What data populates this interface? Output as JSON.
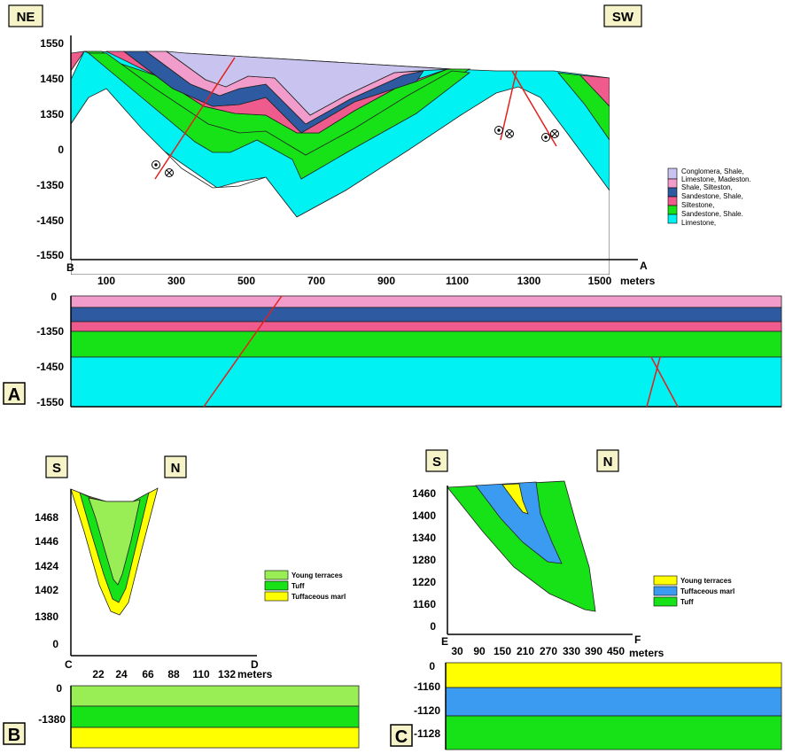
{
  "colors": {
    "conglomerate": "#c8c4ef",
    "shale": "#f29ccb",
    "sandstone_shale_blue": "#2e5aa1",
    "siltstone": "#ee5b8c",
    "sandstone_green": "#17e117",
    "limestone": "#00f2f2",
    "young_terraces": "#99ee55",
    "tuff": "#17e117",
    "tuffaceous_marl": "#ffff00",
    "tuffaceous_marl_c": "#3a9bf0",
    "label_box": "#f7f3c8",
    "fault": "#e3211c"
  },
  "panel_a": {
    "label": "A",
    "orient_left": "NE",
    "orient_right": "SW",
    "y_ticks": [
      "1550",
      "1450",
      "1350",
      "0",
      "-1350",
      "-1450",
      "-1550"
    ],
    "x_ticks": [
      "100",
      "300",
      "500",
      "700",
      "900",
      "1100",
      "1300",
      "1500"
    ],
    "x_unit": "meters",
    "x_start_label": "B",
    "x_end_label": "A",
    "legend": [
      "Conglomera, Shale,",
      "Limestone, Madeston.",
      "Shale, Silteston,",
      "Sandestone, Shale,",
      "Siltestone,",
      "Sandestone, Shale.",
      "Limestone,"
    ],
    "strip_ticks": [
      "0",
      "-1350",
      "-1450",
      "-1550"
    ]
  },
  "panel_b": {
    "label": "B",
    "orient_left": "S",
    "orient_right": "N",
    "y_ticks": [
      "1468",
      "1446",
      "1424",
      "1402",
      "1380",
      "0"
    ],
    "x_ticks": [
      "22",
      "24",
      "66",
      "88",
      "110",
      "132"
    ],
    "x_unit": "meters",
    "x_start_label": "C",
    "x_end_label": "D",
    "legend": [
      "Young terraces",
      "Tuff",
      "Tuffaceous marl"
    ],
    "strip_ticks": [
      "0",
      "-1380"
    ]
  },
  "panel_c": {
    "label": "C",
    "orient_left": "S",
    "orient_right": "N",
    "y_ticks": [
      "1460",
      "1400",
      "1340",
      "1280",
      "1220",
      "1160",
      "0"
    ],
    "x_ticks": [
      "30",
      "90",
      "150",
      "210",
      "270",
      "330",
      "390",
      "450"
    ],
    "x_unit": "meters",
    "x_start_label": "E",
    "x_end_label": "F",
    "legend": [
      "Young terraces",
      "Tuffaceous marl",
      "Tuff"
    ],
    "strip_ticks": [
      "0",
      "-1160",
      "-1120",
      "-1128"
    ]
  }
}
